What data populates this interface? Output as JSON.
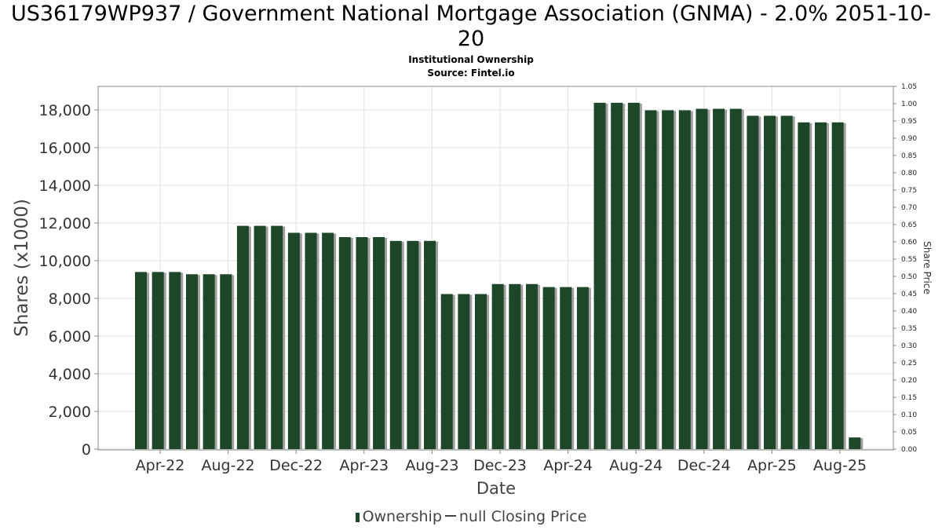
{
  "chart_data": {
    "type": "bar",
    "title": "US36179WP937 / Government National Mortgage Association (GNMA) - 2.0% 2051-10-20",
    "subtitle_lines": [
      "Institutional Ownership",
      "Source: Fintel.io"
    ],
    "xlabel": "Date",
    "ylabel": "Shares (x1000)",
    "y2label": "Share Price",
    "ylim": [
      0,
      19200
    ],
    "y2lim": [
      0,
      1.05
    ],
    "yticks": [
      "0",
      "2,000",
      "4,000",
      "6,000",
      "8,000",
      "10,000",
      "12,000",
      "14,000",
      "16,000",
      "18,000"
    ],
    "y2ticks": [
      "0.00",
      "0.05",
      "0.10",
      "0.15",
      "0.20",
      "0.25",
      "0.30",
      "0.35",
      "0.40",
      "0.45",
      "0.50",
      "0.55",
      "0.60",
      "0.65",
      "0.70",
      "0.75",
      "0.80",
      "0.85",
      "0.90",
      "0.95",
      "1.00",
      "1.05"
    ],
    "xticks": [
      "Apr-22",
      "Aug-22",
      "Dec-22",
      "Apr-23",
      "Aug-23",
      "Dec-23",
      "Apr-24",
      "Aug-24",
      "Dec-24",
      "Apr-25",
      "Aug-25"
    ],
    "grid": true,
    "legend_placement": "bottom",
    "legend": {
      "ownership_label": "Ownership",
      "price_label": "null Closing Price"
    },
    "bar_color": "#1e4629",
    "shadow_color": "#a0a0a0",
    "series": [
      {
        "name": "Ownership",
        "values": [
          9400,
          9400,
          9400,
          9280,
          9280,
          9280,
          11850,
          11850,
          11850,
          11480,
          11480,
          11480,
          11250,
          11250,
          11250,
          11050,
          11050,
          11050,
          8230,
          8230,
          8230,
          8760,
          8760,
          8760,
          8600,
          8600,
          8600,
          18380,
          18380,
          18380,
          17980,
          17980,
          17980,
          18060,
          18060,
          18060,
          17690,
          17690,
          17690,
          17340,
          17340,
          17340,
          620
        ]
      }
    ]
  }
}
